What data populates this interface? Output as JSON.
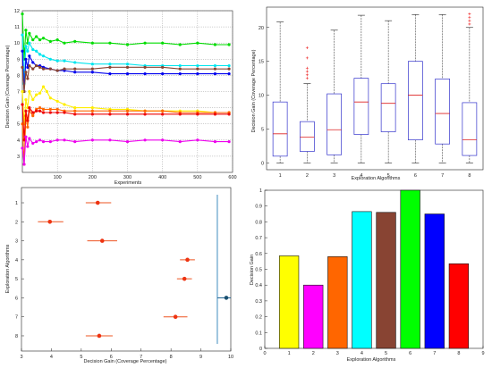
{
  "chart_data": [
    {
      "type": "line",
      "xlabel": "Experiments",
      "ylabel": "Decision Gain (Coverage Percentage)",
      "xlim": [
        0,
        600
      ],
      "ylim": [
        2,
        12
      ],
      "xticks": [
        "100",
        "200",
        "300",
        "400",
        "500",
        "600"
      ],
      "yticks": [
        "3",
        "4",
        "5",
        "6",
        "7",
        "8",
        "9",
        "10",
        "11",
        "12"
      ],
      "grid": true,
      "series": [
        {
          "color": "#00dd00",
          "x": [
            0,
            5,
            10,
            15,
            20,
            30,
            40,
            50,
            60,
            80,
            100,
            120,
            150,
            200,
            250,
            300,
            350,
            400,
            450,
            500,
            550,
            590
          ],
          "y": [
            11.8,
            9.0,
            10.8,
            10.0,
            10.6,
            10.2,
            10.4,
            10.2,
            10.3,
            10.1,
            10.2,
            10.0,
            10.1,
            10.0,
            10.0,
            9.9,
            10.0,
            10.0,
            9.9,
            10.0,
            9.9,
            9.9
          ]
        },
        {
          "color": "#00e5ee",
          "x": [
            0,
            5,
            10,
            15,
            20,
            30,
            40,
            50,
            60,
            80,
            100,
            120,
            150,
            200,
            250,
            300,
            350,
            400,
            450,
            500,
            550,
            590
          ],
          "y": [
            10.5,
            7.5,
            9.8,
            9.5,
            10.0,
            9.6,
            9.5,
            9.3,
            9.2,
            9.0,
            8.9,
            8.9,
            8.8,
            8.7,
            8.7,
            8.7,
            8.6,
            8.6,
            8.6,
            8.6,
            8.6,
            8.6
          ]
        },
        {
          "color": "#0000ee",
          "x": [
            0,
            5,
            10,
            15,
            20,
            30,
            40,
            50,
            60,
            80,
            100,
            120,
            150,
            200,
            250,
            300,
            350,
            400,
            450,
            500,
            550,
            590
          ],
          "y": [
            9.5,
            7.0,
            9.0,
            8.5,
            9.2,
            8.8,
            8.6,
            8.6,
            8.5,
            8.4,
            8.3,
            8.3,
            8.2,
            8.2,
            8.1,
            8.1,
            8.1,
            8.1,
            8.1,
            8.1,
            8.1,
            8.1
          ]
        },
        {
          "color": "#884433",
          "x": [
            0,
            5,
            10,
            15,
            20,
            30,
            40,
            50,
            60,
            80,
            100,
            120,
            150,
            200,
            250,
            300,
            350,
            400,
            450,
            500,
            550,
            590
          ],
          "y": [
            8.5,
            7.0,
            8.2,
            7.8,
            8.6,
            8.4,
            8.6,
            8.5,
            8.4,
            8.4,
            8.3,
            8.4,
            8.4,
            8.4,
            8.5,
            8.5,
            8.5,
            8.5,
            8.4,
            8.4,
            8.4,
            8.4
          ]
        },
        {
          "color": "#ffee00",
          "x": [
            0,
            5,
            10,
            15,
            20,
            30,
            40,
            50,
            60,
            70,
            80,
            100,
            120,
            150,
            200,
            250,
            300,
            350,
            400,
            450,
            500,
            550,
            590
          ],
          "y": [
            7.0,
            5.0,
            6.5,
            6.0,
            7.0,
            6.5,
            6.8,
            6.9,
            7.3,
            7.0,
            6.6,
            6.4,
            6.2,
            6.0,
            6.0,
            5.9,
            5.9,
            5.8,
            5.8,
            5.8,
            5.8,
            5.7,
            5.7
          ]
        },
        {
          "color": "#ff6600",
          "x": [
            0,
            5,
            10,
            15,
            20,
            30,
            40,
            50,
            60,
            80,
            100,
            120,
            150,
            200,
            250,
            300,
            350,
            400,
            450,
            500,
            550,
            590
          ],
          "y": [
            5.0,
            2.5,
            5.5,
            4.8,
            5.8,
            5.5,
            5.9,
            6.0,
            5.9,
            5.9,
            5.9,
            5.8,
            5.8,
            5.8,
            5.8,
            5.8,
            5.8,
            5.8,
            5.7,
            5.7,
            5.7,
            5.7
          ]
        },
        {
          "color": "#ee0000",
          "x": [
            0,
            5,
            10,
            15,
            20,
            30,
            40,
            50,
            60,
            80,
            100,
            120,
            150,
            200,
            250,
            300,
            350,
            400,
            450,
            500,
            550,
            590
          ],
          "y": [
            6.2,
            4.0,
            5.8,
            5.2,
            6.0,
            5.7,
            5.8,
            5.8,
            5.7,
            5.7,
            5.7,
            5.7,
            5.6,
            5.6,
            5.6,
            5.6,
            5.6,
            5.6,
            5.6,
            5.6,
            5.6,
            5.6
          ]
        },
        {
          "color": "#ee00ee",
          "x": [
            0,
            5,
            10,
            15,
            20,
            30,
            40,
            50,
            60,
            80,
            100,
            120,
            150,
            200,
            250,
            300,
            350,
            400,
            450,
            500,
            550,
            590
          ],
          "y": [
            3.5,
            2.5,
            4.2,
            3.6,
            4.1,
            3.8,
            3.9,
            4.0,
            3.9,
            3.9,
            4.0,
            4.0,
            3.9,
            4.0,
            4.0,
            3.9,
            4.0,
            4.0,
            3.9,
            4.0,
            3.9,
            3.9
          ]
        }
      ]
    },
    {
      "type": "box",
      "xlabel": "Exploration Algorithms",
      "ylabel": "Decision Gain (Coverage Percentage)",
      "ylim": [
        -1,
        23
      ],
      "categories": [
        "1",
        "2",
        "3",
        "4",
        "5",
        "6",
        "7",
        "8"
      ],
      "yticks": [
        "0",
        "5",
        "10",
        "15",
        "20"
      ],
      "boxes": [
        {
          "whisker_low": 0,
          "q1": 1.0,
          "median": 4.3,
          "q3": 9.0,
          "whisker_high": 20.8,
          "outliers": []
        },
        {
          "whisker_low": 0,
          "q1": 1.7,
          "median": 3.8,
          "q3": 6.1,
          "whisker_high": 11.7,
          "outliers": [
            12.5,
            13.0,
            13.5,
            14.0,
            15.5,
            17.0
          ]
        },
        {
          "whisker_low": 0,
          "q1": 1.2,
          "median": 4.9,
          "q3": 10.2,
          "whisker_high": 19.6,
          "outliers": []
        },
        {
          "whisker_low": 0,
          "q1": 4.2,
          "median": 9.0,
          "q3": 12.5,
          "whisker_high": 21.8,
          "outliers": []
        },
        {
          "whisker_low": 0,
          "q1": 4.6,
          "median": 8.8,
          "q3": 11.7,
          "whisker_high": 21.0,
          "outliers": []
        },
        {
          "whisker_low": 0,
          "q1": 3.4,
          "median": 10.0,
          "q3": 15.0,
          "whisker_high": 21.9,
          "outliers": []
        },
        {
          "whisker_low": 0,
          "q1": 2.8,
          "median": 7.3,
          "q3": 12.4,
          "whisker_high": 21.9,
          "outliers": []
        },
        {
          "whisker_low": 0,
          "q1": 1.1,
          "median": 3.4,
          "q3": 8.9,
          "whisker_high": 20.0,
          "outliers": [
            20.5,
            21.0,
            21.5,
            22.0
          ]
        }
      ]
    },
    {
      "type": "scatter",
      "xlabel": "Decision Gain (Coverage Percentage)",
      "ylabel": "Exploration Algorithms",
      "xlim": [
        3,
        10
      ],
      "xticks": [
        "3",
        "4",
        "5",
        "6",
        "7",
        "8",
        "9",
        "10"
      ],
      "categories": [
        "1",
        "2",
        "3",
        "4",
        "5",
        "6",
        "7",
        "8"
      ],
      "points": [
        {
          "category": "1",
          "x": 5.55,
          "low": 5.15,
          "high": 6.0
        },
        {
          "category": "2",
          "x": 3.95,
          "low": 3.55,
          "high": 4.4
        },
        {
          "category": "3",
          "x": 5.7,
          "low": 5.2,
          "high": 6.2
        },
        {
          "category": "4",
          "x": 8.55,
          "low": 8.3,
          "high": 8.8
        },
        {
          "category": "5",
          "x": 8.45,
          "low": 8.2,
          "high": 8.7
        },
        {
          "category": "6",
          "x": 9.85,
          "low": 9.55,
          "high": 10.0
        },
        {
          "category": "7",
          "x": 8.15,
          "low": 7.75,
          "high": 8.55
        },
        {
          "category": "8",
          "x": 5.6,
          "low": 5.15,
          "high": 6.05
        }
      ],
      "highlight_category": "6",
      "reference_x": 9.55
    },
    {
      "type": "bar",
      "xlabel": "Exploration Algorithms",
      "ylabel": "Decision Gain",
      "ylim": [
        0,
        1
      ],
      "categories": [
        "1",
        "2",
        "3",
        "4",
        "5",
        "6",
        "7",
        "8"
      ],
      "xticks": [
        "0",
        "1",
        "2",
        "3",
        "4",
        "5",
        "6",
        "7",
        "8",
        "9"
      ],
      "yticks": [
        "0",
        "0.1",
        "0.2",
        "0.3",
        "0.4",
        "0.5",
        "0.6",
        "0.7",
        "0.8",
        "0.9",
        "1"
      ],
      "values": [
        0.585,
        0.4,
        0.58,
        0.865,
        0.86,
        1.0,
        0.85,
        0.535
      ],
      "colors": [
        "#ffff00",
        "#ff00ff",
        "#ff6600",
        "#00ffff",
        "#884433",
        "#00ff00",
        "#0000ff",
        "#ff0000"
      ]
    }
  ]
}
